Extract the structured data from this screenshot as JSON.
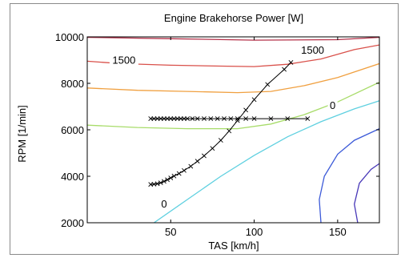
{
  "chart_data": {
    "type": "line",
    "title": "Engine Brakehorse Power [W]",
    "xlabel": "TAS [km/h]",
    "ylabel": "RPM [1/min]",
    "xlim": [
      0,
      175
    ],
    "ylim": [
      2000,
      10000
    ],
    "xticks": [
      "50",
      "100",
      "150"
    ],
    "xtick_values": [
      50,
      100,
      150
    ],
    "yticks": [
      "2000",
      "4000",
      "6000",
      "8000",
      "10000"
    ],
    "ytick_values": [
      2000,
      4000,
      6000,
      8000,
      10000
    ],
    "grid": false,
    "contours": [
      {
        "color": "#b4324a",
        "points": [
          [
            0,
            9980
          ],
          [
            50,
            9920
          ],
          [
            100,
            9860
          ],
          [
            150,
            9880
          ],
          [
            175,
            9980
          ]
        ]
      },
      {
        "color": "#d9504a",
        "points": [
          [
            0,
            8950
          ],
          [
            20,
            8850
          ],
          [
            50,
            8780
          ],
          [
            80,
            8740
          ],
          [
            100,
            8720
          ],
          [
            120,
            8820
          ],
          [
            140,
            9050
          ],
          [
            160,
            9450
          ],
          [
            175,
            9650
          ]
        ]
      },
      {
        "color": "#f0a040",
        "points": [
          [
            0,
            7800
          ],
          [
            30,
            7700
          ],
          [
            60,
            7650
          ],
          [
            90,
            7600
          ],
          [
            110,
            7650
          ],
          [
            130,
            7900
          ],
          [
            150,
            8250
          ],
          [
            175,
            8850
          ]
        ]
      },
      {
        "color": "#a8dc6a",
        "points": [
          [
            0,
            6200
          ],
          [
            30,
            6100
          ],
          [
            60,
            6050
          ],
          [
            90,
            6050
          ],
          [
            110,
            6250
          ],
          [
            130,
            6650
          ],
          [
            150,
            7200
          ],
          [
            175,
            8050
          ]
        ]
      },
      {
        "color": "#5fd0e0",
        "points": [
          [
            40,
            2000
          ],
          [
            60,
            3000
          ],
          [
            80,
            4000
          ],
          [
            100,
            4900
          ],
          [
            120,
            5700
          ],
          [
            140,
            6350
          ],
          [
            160,
            6900
          ],
          [
            175,
            7250
          ]
        ]
      },
      {
        "color": "#3c5ad8",
        "points": [
          [
            140,
            2000
          ],
          [
            139,
            3000
          ],
          [
            142,
            4000
          ],
          [
            150,
            4950
          ],
          [
            160,
            5550
          ],
          [
            175,
            6050
          ]
        ]
      },
      {
        "color": "#4838b8",
        "points": [
          [
            162,
            2000
          ],
          [
            160,
            2800
          ],
          [
            163,
            3700
          ],
          [
            170,
            4300
          ],
          [
            175,
            4550
          ]
        ]
      }
    ],
    "contour_labels": [
      {
        "text": "1500",
        "x": 22,
        "y": 8850
      },
      {
        "text": "1500",
        "x": 135,
        "y": 9280
      },
      {
        "text": "0",
        "x": 147,
        "y": 6900
      },
      {
        "text": "0",
        "x": 46,
        "y": 2650
      }
    ],
    "series": [
      {
        "color": "#000000",
        "marker": "x",
        "x": [
          38,
          40,
          42,
          44,
          46,
          48,
          50,
          52,
          55,
          58,
          62,
          66,
          70,
          75,
          80,
          85,
          90,
          95,
          100,
          108,
          118,
          122
        ],
        "y": [
          3650,
          3660,
          3680,
          3720,
          3780,
          3850,
          3930,
          4010,
          4120,
          4250,
          4430,
          4650,
          4880,
          5200,
          5550,
          5950,
          6400,
          6850,
          7300,
          7950,
          8600,
          8900
        ]
      },
      {
        "color": "#000000",
        "marker": "x",
        "x": [
          38,
          40,
          42,
          44,
          46,
          48,
          50,
          52,
          54,
          56,
          58,
          60,
          63,
          66,
          70,
          74,
          78,
          82,
          86,
          90,
          95,
          100,
          110,
          120,
          132
        ],
        "y": [
          6480,
          6480,
          6480,
          6480,
          6480,
          6480,
          6480,
          6480,
          6480,
          6480,
          6480,
          6480,
          6480,
          6480,
          6480,
          6480,
          6480,
          6480,
          6480,
          6480,
          6480,
          6480,
          6480,
          6480,
          6480
        ]
      }
    ]
  }
}
